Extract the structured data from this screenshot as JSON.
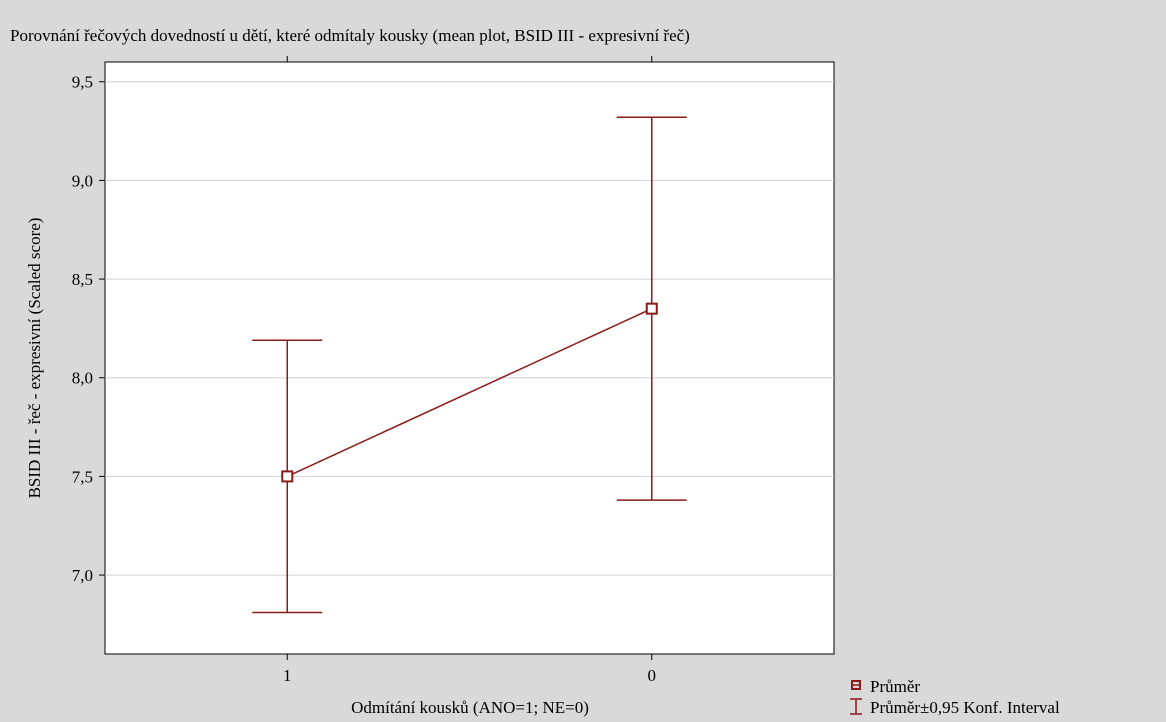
{
  "chart_data": {
    "type": "line",
    "title": "Porovnání řečových dovedností u dětí, které odmítaly kousky (mean plot, BSID III - expresivní řeč)",
    "xlabel": "Odmítání kousků (ANO=1; NE=0)",
    "ylabel": "BSID III - řeč - expresivní (Scaled score)",
    "categories": [
      "1",
      "0"
    ],
    "series": [
      {
        "name": "Průměr",
        "values": [
          7.5,
          8.35
        ],
        "ci_lower": [
          6.81,
          7.38
        ],
        "ci_upper": [
          8.19,
          9.32
        ]
      }
    ],
    "yticks": [
      "7,0",
      "7,5",
      "8,0",
      "8,5",
      "9,0",
      "9,5"
    ],
    "ytick_values": [
      7.0,
      7.5,
      8.0,
      8.5,
      9.0,
      9.5
    ],
    "ylim": [
      6.6,
      9.6
    ],
    "grid": true,
    "legend": {
      "position": "bottom-right",
      "items": [
        "Průměr",
        "Průměr±0,95 Konf. Interval"
      ]
    },
    "colors": {
      "series": "#8b1a1a",
      "plot_bg": "#ffffff",
      "page_bg": "#d9d9d9",
      "grid": "#d0d0d0"
    }
  }
}
